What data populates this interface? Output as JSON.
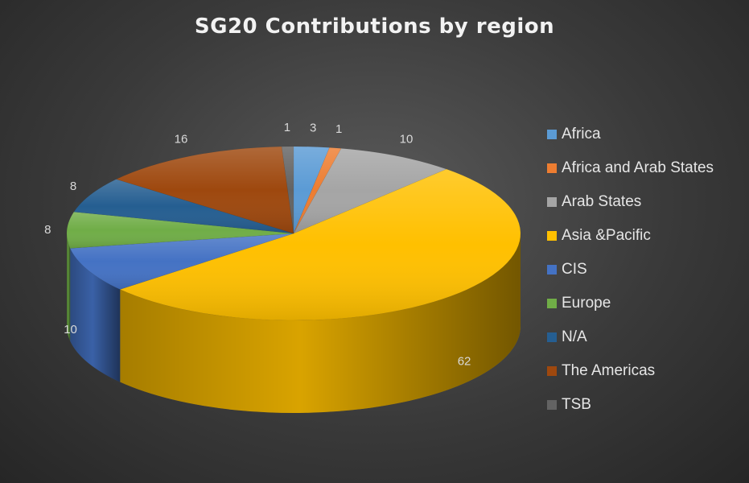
{
  "chart_data": {
    "type": "pie",
    "title": "SG20 Contributions by region",
    "three_d": true,
    "legend_position": "right",
    "slices": [
      {
        "name": "Africa",
        "value": 3,
        "label": "3",
        "color": "#5b9bd5"
      },
      {
        "name": "Africa and Arab States",
        "value": 1,
        "label": "1",
        "color": "#ed7d31"
      },
      {
        "name": "Arab States",
        "value": 10,
        "label": "10",
        "color": "#a5a5a5"
      },
      {
        "name": "Asia &Pacific",
        "value": 62,
        "label": "62",
        "color": "#ffc000"
      },
      {
        "name": "CIS",
        "value": 10,
        "label": "10",
        "color": "#4472c4"
      },
      {
        "name": "Europe",
        "value": 8,
        "label": "8",
        "color": "#70ad47"
      },
      {
        "name": "N/A",
        "value": 8,
        "label": "8",
        "color": "#255e91"
      },
      {
        "name": "The Americas",
        "value": 16,
        "label": "16",
        "color": "#9e480e"
      },
      {
        "name": "TSB",
        "value": 1,
        "label": "1",
        "color": "#636363"
      }
    ]
  }
}
